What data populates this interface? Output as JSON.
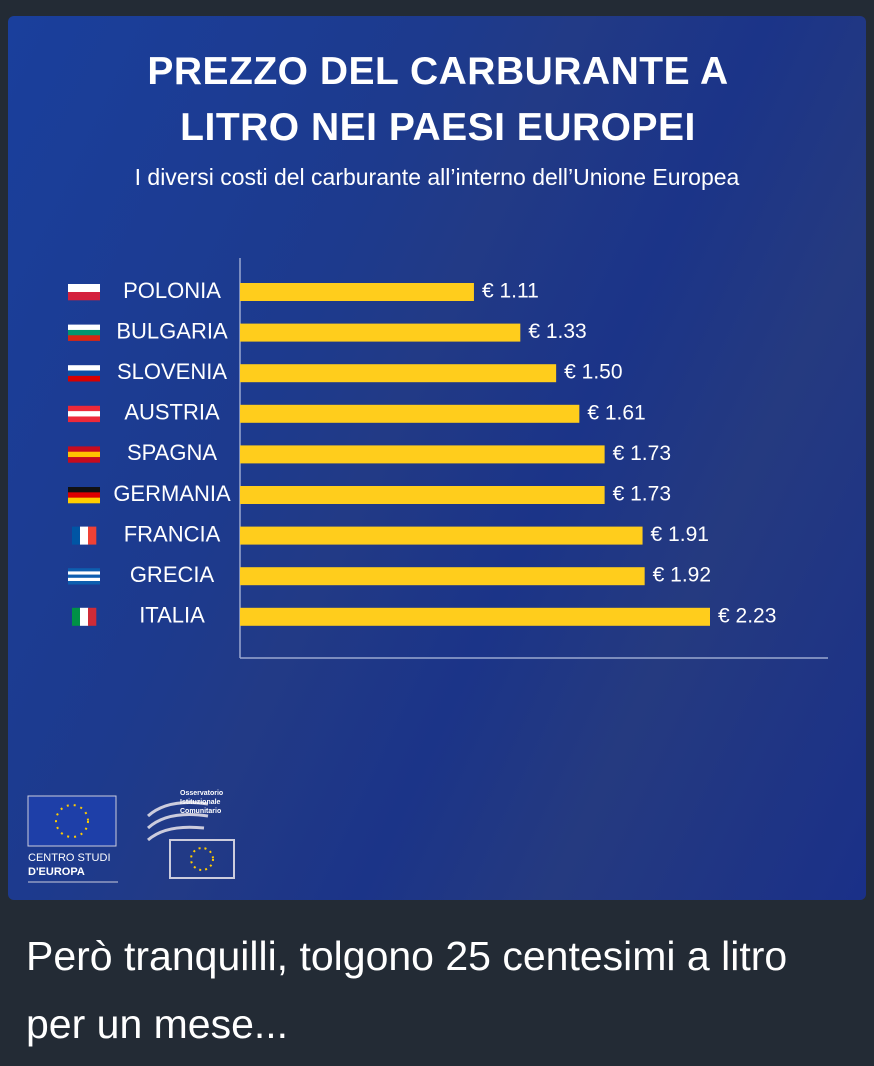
{
  "chart_data": {
    "type": "bar",
    "orientation": "horizontal",
    "title": "PREZZO DEL CARBURANTE A LITRO NEI PAESI EUROPEI",
    "subtitle": "I diversi costi del carburante all’interno dell’Unione Europea",
    "categories": [
      "POLONIA",
      "BULGARIA",
      "SLOVENIA",
      "AUSTRIA",
      "SPAGNA",
      "GERMANIA",
      "FRANCIA",
      "GRECIA",
      "ITALIA"
    ],
    "values": [
      1.11,
      1.33,
      1.5,
      1.61,
      1.73,
      1.73,
      1.91,
      1.92,
      2.23
    ],
    "value_labels": [
      "€ 1.11",
      "€ 1.33",
      "€ 1.50",
      "€ 1.61",
      "€ 1.73",
      "€ 1.73",
      "€ 1.91",
      "€ 1.92",
      "€ 2.23"
    ],
    "color": "#ffcd1c"
  },
  "logos": {
    "left": [
      "CENTRO STUDI",
      "D'EUROPA"
    ],
    "right": [
      "Osservatorio",
      "Istituzionale",
      "Comunitario"
    ]
  },
  "caption": "Però tranquilli, tolgono 25 centesimi a litro per un mese..."
}
